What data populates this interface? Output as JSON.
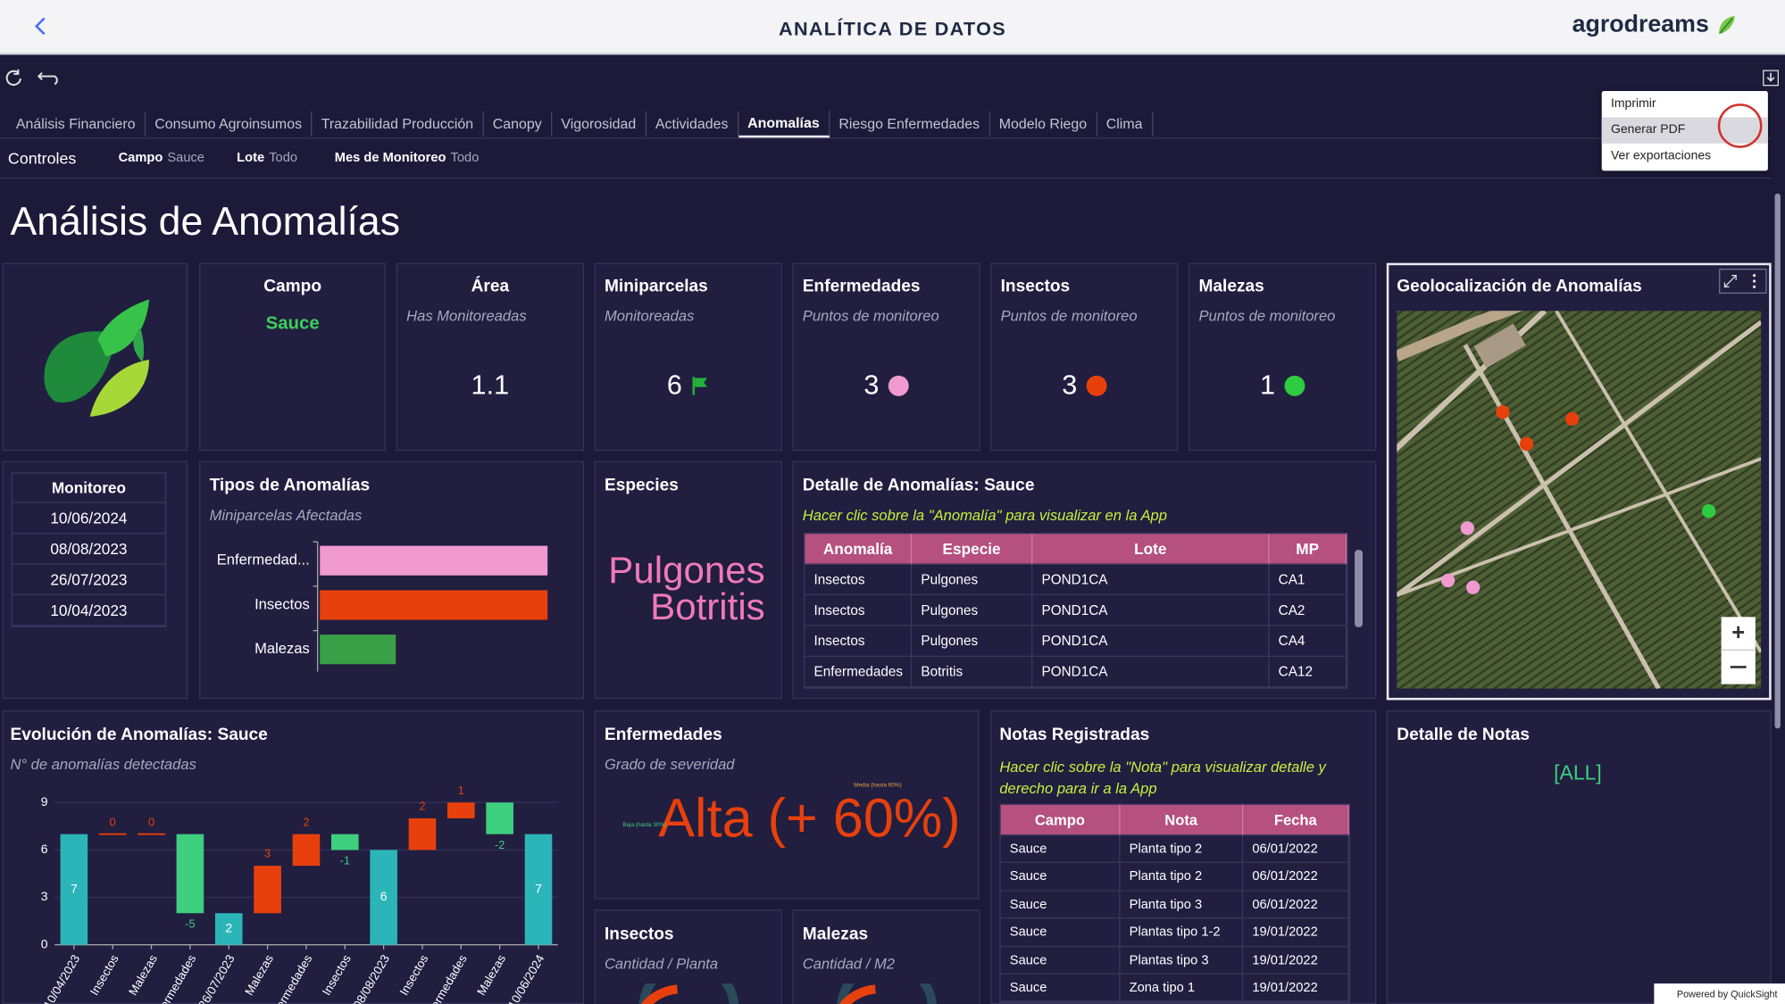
{
  "header": {
    "title": "ANALÍTICA DE DATOS",
    "brand": "agrodreams"
  },
  "menu": {
    "items": [
      "Imprimir",
      "Generar PDF",
      "Ver exportaciones"
    ],
    "highlighted": 1
  },
  "tabs": {
    "items": [
      "Análisis Financiero",
      "Consumo Agroinsumos",
      "Trazabilidad Producción",
      "Canopy",
      "Vigorosidad",
      "Actividades",
      "Anomalías",
      "Riesgo Enfermedades",
      "Modelo Riego",
      "Clima"
    ],
    "active": 6
  },
  "controls": {
    "label": "Controles",
    "filters": [
      {
        "name": "Campo",
        "value": "Sauce"
      },
      {
        "name": "Lote",
        "value": "Todo"
      },
      {
        "name": "Mes de Monitoreo",
        "value": "Todo"
      }
    ]
  },
  "page_title": "Análisis de Anomalías",
  "kpis": [
    {
      "title": "Campo",
      "value": "Sauce",
      "color": "#3ecf5a"
    },
    {
      "title": "Área",
      "subtitle": "Has Monitoreadas",
      "value": 1.1
    },
    {
      "title": "Miniparcelas",
      "subtitle": "Monitoreadas",
      "value": 6,
      "marker": "flag",
      "color": "#23b23a"
    },
    {
      "title": "Enfermedades",
      "subtitle": "Puntos de monitoreo",
      "value": 3,
      "marker": "dot",
      "color": "#f09ad0"
    },
    {
      "title": "Insectos",
      "subtitle": "Puntos de monitoreo",
      "value": 3,
      "marker": "dot",
      "color": "#e8400c"
    },
    {
      "title": "Malezas",
      "subtitle": "Puntos de monitoreo",
      "value": 1,
      "marker": "dot",
      "color": "#2ecc40"
    }
  ],
  "monitoreo": {
    "header": "Monitoreo",
    "rows": [
      "10/06/2024",
      "08/08/2023",
      "26/07/2023",
      "10/04/2023"
    ]
  },
  "especies": {
    "title": "Especies",
    "words": [
      "Pulgones",
      "Botritis"
    ],
    "color": "#f07ab8"
  },
  "detalle_anomalias": {
    "title": "Detalle de Anomalías: Sauce",
    "note": "Hacer clic sobre la \"Anomalía\" para visualizar en la App",
    "columns": [
      "Anomalía",
      "Especie",
      "Lote",
      "MP"
    ],
    "rows": [
      [
        "Insectos",
        "Pulgones",
        "POND1CA",
        "CA1"
      ],
      [
        "Insectos",
        "Pulgones",
        "POND1CA",
        "CA2"
      ],
      [
        "Insectos",
        "Pulgones",
        "POND1CA",
        "CA4"
      ],
      [
        "Enfermedades",
        "Botritis",
        "POND1CA",
        "CA12"
      ]
    ]
  },
  "mapa": {
    "title": "Geolocalización de Anomalías"
  },
  "severidad": {
    "title": "Enfermedades",
    "subtitle": "Grado de severidad",
    "value": "Alta (+ 60%)",
    "gauge_labels": [
      "Baja (hasta 30%)",
      "Media (hasta 60%)"
    ],
    "color": "#e8400c"
  },
  "insectos_panel": {
    "title": "Insectos",
    "subtitle": "Cantidad / Planta"
  },
  "malezas_panel": {
    "title": "Malezas",
    "subtitle": "Cantidad / M2"
  },
  "notas": {
    "title": "Notas Registradas",
    "note": "Hacer clic sobre la \"Nota\" para visualizar detalle y derecho para ir a la App",
    "columns": [
      "Campo",
      "Nota",
      "Fecha"
    ],
    "rows": [
      [
        "Sauce",
        "Planta tipo 2",
        "06/01/2022"
      ],
      [
        "Sauce",
        "Planta tipo 2",
        "06/01/2022"
      ],
      [
        "Sauce",
        "Planta tipo 3",
        "06/01/2022"
      ],
      [
        "Sauce",
        "Plantas tipo 1-2",
        "19/01/2022"
      ],
      [
        "Sauce",
        "Plantas tipo 3",
        "19/01/2022"
      ],
      [
        "Sauce",
        "Zona tipo 1",
        "19/01/2022"
      ]
    ]
  },
  "detalle_notas": {
    "title": "Detalle de Notas",
    "value": "[ALL]"
  },
  "footer": {
    "text": "Powered by QuickSight"
  },
  "chart_data": [
    {
      "type": "bar",
      "orientation": "horizontal",
      "title": "Tipos de Anomalías",
      "subtitle": "Miniparcelas Afectadas",
      "categories": [
        "Enfermedad...",
        "Insectos",
        "Malezas"
      ],
      "values": [
        3,
        3,
        1
      ],
      "colors": [
        "#f09ad0",
        "#e8400c",
        "#3aa048"
      ],
      "xlim": [
        0,
        3.3
      ]
    },
    {
      "type": "waterfall",
      "title": "Evolución de Anomalías: Sauce",
      "subtitle": "N° de anomalías detectadas",
      "categories": [
        "10/04/2023",
        "Insectos",
        "Malezas",
        "Enfermedades",
        "26/07/2023",
        "Malezas",
        "Enfermedades",
        "Insectos",
        "08/08/2023",
        "Insectos",
        "Enfermedades",
        "Malezas",
        "10/06/2024"
      ],
      "values": [
        7,
        0,
        0,
        -5,
        2,
        3,
        2,
        -1,
        6,
        2,
        1,
        -2,
        7
      ],
      "kinds": [
        "total",
        "delta",
        "delta",
        "delta",
        "total",
        "delta",
        "delta",
        "delta",
        "total",
        "delta",
        "delta",
        "delta",
        "total"
      ],
      "colors": {
        "total": "#2bb5b8",
        "increase": "#e8400c",
        "decrease": "#3ecf7f"
      },
      "ylim": [
        0,
        9
      ],
      "yticks": [
        0,
        3,
        6,
        9
      ],
      "grid": true
    }
  ]
}
